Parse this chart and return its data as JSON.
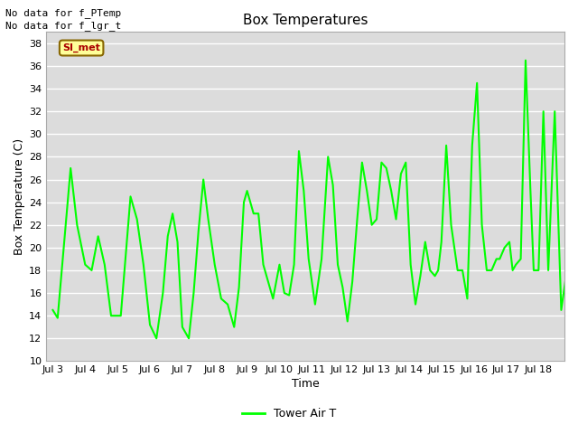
{
  "title": "Box Temperatures",
  "xlabel": "Time",
  "ylabel": "Box Temperature (C)",
  "ylim": [
    10,
    39
  ],
  "yticks": [
    10,
    12,
    14,
    16,
    18,
    20,
    22,
    24,
    26,
    28,
    30,
    32,
    34,
    36,
    38
  ],
  "xtick_labels": [
    "Jul 3",
    "Jul 4",
    "Jul 5",
    "Jul 6",
    "Jul 7",
    "Jul 8",
    "Jul 9",
    "Jul 10",
    "Jul 11",
    "Jul 12",
    "Jul 13",
    "Jul 14",
    "Jul 15",
    "Jul 16",
    "Jul 17",
    "Jul 18"
  ],
  "line_color": "#00ff00",
  "line_width": 1.5,
  "bg_color": "#dcdcdc",
  "grid_color": "#ffffff",
  "text_no_data": [
    "No data for f_PTemp",
    "No data for f_lgr_t"
  ],
  "si_met_label": "SI_met",
  "si_met_bg": "#ffff99",
  "si_met_border": "#886600",
  "si_met_text_color": "#aa0000",
  "legend_label": "Tower Air T",
  "key_x": [
    0.0,
    0.15,
    0.55,
    0.75,
    1.0,
    1.2,
    1.4,
    1.6,
    1.8,
    2.1,
    2.4,
    2.6,
    2.8,
    3.0,
    3.2,
    3.4,
    3.55,
    3.7,
    3.85,
    4.0,
    4.2,
    4.35,
    4.5,
    4.65,
    4.8,
    5.0,
    5.2,
    5.4,
    5.6,
    5.75,
    5.9,
    6.0,
    6.2,
    6.35,
    6.5,
    6.65,
    6.8,
    7.0,
    7.15,
    7.3,
    7.45,
    7.6,
    7.75,
    7.9,
    8.1,
    8.3,
    8.5,
    8.65,
    8.8,
    8.95,
    9.1,
    9.25,
    9.4,
    9.55,
    9.7,
    9.85,
    10.0,
    10.15,
    10.3,
    10.45,
    10.6,
    10.75,
    10.9,
    11.05,
    11.2,
    11.35,
    11.5,
    11.65,
    11.8,
    11.9,
    12.0,
    12.15,
    12.3,
    12.5,
    12.65,
    12.8,
    12.95,
    13.1,
    13.25,
    13.4,
    13.55,
    13.7,
    13.8,
    13.95,
    14.1,
    14.2,
    14.3,
    14.45,
    14.6,
    14.75,
    14.85,
    15.0,
    15.15,
    15.3,
    15.5,
    15.7,
    15.9
  ],
  "key_y": [
    14.5,
    13.8,
    27.0,
    22.0,
    18.5,
    18.0,
    21.0,
    18.5,
    14.0,
    14.0,
    24.5,
    22.5,
    18.5,
    13.2,
    12.0,
    16.0,
    21.0,
    23.0,
    20.5,
    13.0,
    12.0,
    16.0,
    21.5,
    26.0,
    22.5,
    18.5,
    15.5,
    15.0,
    13.0,
    16.5,
    24.0,
    25.0,
    23.0,
    23.0,
    18.5,
    17.0,
    15.5,
    18.5,
    16.0,
    15.8,
    18.5,
    28.5,
    25.0,
    19.0,
    15.0,
    19.0,
    28.0,
    25.5,
    18.5,
    16.5,
    13.5,
    17.0,
    22.5,
    27.5,
    25.0,
    22.0,
    22.5,
    27.5,
    27.0,
    25.0,
    22.5,
    26.5,
    27.5,
    18.5,
    15.0,
    17.5,
    20.5,
    18.0,
    17.5,
    18.0,
    20.5,
    29.0,
    22.0,
    18.0,
    18.0,
    15.5,
    29.0,
    34.5,
    22.0,
    18.0,
    18.0,
    19.0,
    19.0,
    20.0,
    20.5,
    18.0,
    18.5,
    19.0,
    36.5,
    25.0,
    18.0,
    18.0,
    32.0,
    18.0,
    32.0,
    14.5,
    18.5
  ]
}
